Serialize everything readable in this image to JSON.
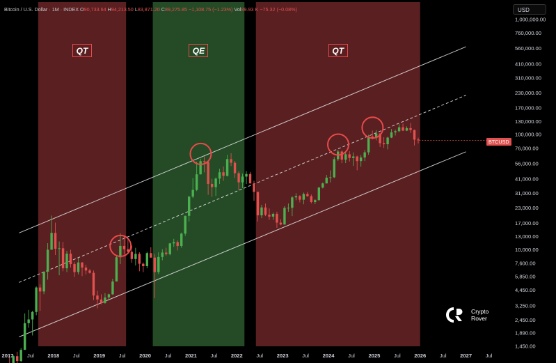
{
  "header": {
    "symbol": "Bitcoin / U.S. Dollar · 1M · INDEX",
    "o_key": "O",
    "o_val": "90,733.64",
    "h_key": "H",
    "h_val": "94,213.50",
    "l_key": "L",
    "l_val": "83,871.20",
    "c_key": "C",
    "c_val": "89,275.85",
    "change": "−1,108.75 (−1.23%)",
    "vol_key": "Vol",
    "vol_val": "89.93 K",
    "vol_change": "−75.32 (−0.08%)"
  },
  "currency_button": "USD",
  "last_price_tag": "BTCUSD",
  "logo": {
    "line1": "Crypto",
    "line2": "Rover"
  },
  "colors": {
    "up": "#4caf50",
    "down": "#e0514f",
    "qt_zone": "#5a1f21",
    "qe_zone": "#244b26",
    "circle": "#e84a4a",
    "channel": "#e6e6e6"
  },
  "chart_data": {
    "type": "candlestick",
    "y_scale": "log",
    "ylim": [
      1450,
      1000000
    ],
    "y_ticks": [
      1000000,
      760000,
      560000,
      410000,
      310000,
      230000,
      170000,
      130000,
      100000,
      76000,
      56000,
      41000,
      31000,
      23000,
      17000,
      13000,
      10000,
      7600,
      5850,
      4450,
      3250,
      2450,
      1890,
      1450
    ],
    "y_tick_labels": [
      "1,000,000.00",
      "760,000.00",
      "560,000.00",
      "410,000.00",
      "310,000.00",
      "230,000.00",
      "170,000.00",
      "130,000.00",
      "100,000.00",
      "76,000.00",
      "56,000.00",
      "41,000.00",
      "31,000.00",
      "23,000.00",
      "17,000.00",
      "13,000.00",
      "10,000.00",
      "7,600.00",
      "5,850.00",
      "4,450.00",
      "3,250.00",
      "2,450.00",
      "1,890.00",
      "1,450.00"
    ],
    "x_range": [
      "2016-11",
      "2027-12"
    ],
    "x_ticks": [
      {
        "date": "2017-01",
        "label": "2017"
      },
      {
        "date": "2017-07",
        "label": "Jul"
      },
      {
        "date": "2018-01",
        "label": "2018"
      },
      {
        "date": "2018-07",
        "label": "Jul"
      },
      {
        "date": "2019-01",
        "label": "2019"
      },
      {
        "date": "2019-07",
        "label": "Jul"
      },
      {
        "date": "2020-01",
        "label": "2020"
      },
      {
        "date": "2020-07",
        "label": "Jul"
      },
      {
        "date": "2021-01",
        "label": "2021"
      },
      {
        "date": "2021-07",
        "label": "Jul"
      },
      {
        "date": "2022-01",
        "label": "2022"
      },
      {
        "date": "2022-07",
        "label": "Jul"
      },
      {
        "date": "2023-01",
        "label": "2023"
      },
      {
        "date": "2023-07",
        "label": "Jul"
      },
      {
        "date": "2024-01",
        "label": "2024"
      },
      {
        "date": "2024-07",
        "label": "Jul"
      },
      {
        "date": "2025-01",
        "label": "2025"
      },
      {
        "date": "2025-07",
        "label": "Jul"
      },
      {
        "date": "2026-01",
        "label": "2026"
      },
      {
        "date": "2026-07",
        "label": "Jul"
      },
      {
        "date": "2027-01",
        "label": "2027"
      },
      {
        "date": "2027-07",
        "label": "Jul"
      }
    ],
    "zones": [
      {
        "label": "QT",
        "start": "2017-09",
        "end": "2019-08"
      },
      {
        "label": "QE",
        "start": "2020-03",
        "end": "2022-03"
      },
      {
        "label": "QT",
        "start": "2022-06",
        "end": "2026-01"
      }
    ],
    "channel": {
      "upper": [
        [
          "2017-04",
          14000
        ],
        [
          "2027-01",
          580000
        ]
      ],
      "middle": [
        [
          "2017-04",
          5200
        ],
        [
          "2027-01",
          220000
        ]
      ],
      "lower": [
        [
          "2017-04",
          1750
        ],
        [
          "2027-01",
          71000
        ]
      ]
    },
    "circles": [
      {
        "date": "2019-06",
        "price": 10800
      },
      {
        "date": "2021-03",
        "price": 68000
      },
      {
        "date": "2024-03",
        "price": 82000
      },
      {
        "date": "2024-12",
        "price": 115000
      }
    ],
    "last_price": 89275.85,
    "ohlc": [
      [
        "2017-01",
        970,
        1190,
        750,
        960
      ],
      [
        "2017-02",
        960,
        1210,
        920,
        1190
      ],
      [
        "2017-03",
        1190,
        1300,
        890,
        1080
      ],
      [
        "2017-04",
        1080,
        1400,
        1060,
        1350
      ],
      [
        "2017-05",
        1350,
        2800,
        1350,
        2300
      ],
      [
        "2017-06",
        2300,
        3000,
        2100,
        2480
      ],
      [
        "2017-07",
        2480,
        2950,
        1800,
        2880
      ],
      [
        "2017-08",
        2880,
        4800,
        2700,
        4700
      ],
      [
        "2017-09",
        4700,
        5000,
        2950,
        4340
      ],
      [
        "2017-10",
        4340,
        6500,
        4110,
        6450
      ],
      [
        "2017-11",
        6450,
        11400,
        5500,
        10000
      ],
      [
        "2017-12",
        10000,
        19800,
        10000,
        14000
      ],
      [
        "2018-01",
        14000,
        17200,
        9000,
        10200
      ],
      [
        "2018-02",
        10200,
        11800,
        6000,
        10300
      ],
      [
        "2018-03",
        10300,
        11700,
        6500,
        6900
      ],
      [
        "2018-04",
        6900,
        9800,
        6400,
        9250
      ],
      [
        "2018-05",
        9250,
        10000,
        7000,
        7500
      ],
      [
        "2018-06",
        7500,
        7800,
        5800,
        6400
      ],
      [
        "2018-07",
        6400,
        8500,
        6100,
        7750
      ],
      [
        "2018-08",
        7750,
        7800,
        5900,
        7000
      ],
      [
        "2018-09",
        7000,
        7400,
        6100,
        6600
      ],
      [
        "2018-10",
        6600,
        6800,
        6200,
        6300
      ],
      [
        "2018-11",
        6300,
        6600,
        3650,
        4000
      ],
      [
        "2018-12",
        4000,
        4400,
        3100,
        3700
      ],
      [
        "2019-01",
        3700,
        4100,
        3350,
        3450
      ],
      [
        "2019-02",
        3450,
        4200,
        3400,
        3850
      ],
      [
        "2019-03",
        3850,
        4150,
        3700,
        4100
      ],
      [
        "2019-04",
        4100,
        5600,
        4050,
        5300
      ],
      [
        "2019-05",
        5300,
        9000,
        5300,
        8600
      ],
      [
        "2019-06",
        8600,
        13900,
        7500,
        10800
      ],
      [
        "2019-07",
        10800,
        13200,
        9100,
        10100
      ],
      [
        "2019-08",
        10100,
        12300,
        9400,
        9600
      ],
      [
        "2019-09",
        9600,
        10900,
        7700,
        8300
      ],
      [
        "2019-10",
        8300,
        10400,
        7300,
        9200
      ],
      [
        "2019-11",
        9200,
        9500,
        6500,
        7550
      ],
      [
        "2019-12",
        7550,
        7750,
        6400,
        7200
      ],
      [
        "2020-01",
        7200,
        9600,
        6900,
        9350
      ],
      [
        "2020-02",
        9350,
        10500,
        8500,
        8550
      ],
      [
        "2020-03",
        8550,
        9200,
        3800,
        6400
      ],
      [
        "2020-04",
        6400,
        9500,
        6150,
        8650
      ],
      [
        "2020-05",
        8650,
        10100,
        8100,
        9450
      ],
      [
        "2020-06",
        9450,
        10400,
        8900,
        9150
      ],
      [
        "2020-07",
        9150,
        11450,
        8950,
        11350
      ],
      [
        "2020-08",
        11350,
        12450,
        10600,
        11650
      ],
      [
        "2020-09",
        11650,
        12050,
        9850,
        10780
      ],
      [
        "2020-10",
        10780,
        14100,
        10400,
        13800
      ],
      [
        "2020-11",
        13800,
        19800,
        13200,
        19700
      ],
      [
        "2020-12",
        19700,
        29300,
        17600,
        28950
      ],
      [
        "2021-01",
        28950,
        41900,
        28100,
        33100
      ],
      [
        "2021-02",
        33100,
        58300,
        32300,
        45200
      ],
      [
        "2021-03",
        45200,
        61800,
        45000,
        58800
      ],
      [
        "2021-04",
        58800,
        64800,
        47000,
        57700
      ],
      [
        "2021-05",
        57700,
        59500,
        30000,
        37300
      ],
      [
        "2021-06",
        37300,
        41300,
        28800,
        35000
      ],
      [
        "2021-07",
        35000,
        42400,
        29300,
        41500
      ],
      [
        "2021-08",
        41500,
        50500,
        37300,
        47100
      ],
      [
        "2021-09",
        47100,
        52900,
        39600,
        43800
      ],
      [
        "2021-10",
        43800,
        66900,
        43300,
        61300
      ],
      [
        "2021-11",
        61300,
        69000,
        53300,
        57000
      ],
      [
        "2021-12",
        57000,
        59100,
        42000,
        46200
      ],
      [
        "2022-01",
        46200,
        47900,
        32900,
        38500
      ],
      [
        "2022-02",
        38500,
        45800,
        34300,
        43200
      ],
      [
        "2022-03",
        43200,
        48200,
        37200,
        45500
      ],
      [
        "2022-04",
        45500,
        47400,
        37600,
        37700
      ],
      [
        "2022-05",
        37700,
        39800,
        26600,
        31800
      ],
      [
        "2022-06",
        31800,
        31900,
        17600,
        19900
      ],
      [
        "2022-07",
        19900,
        24600,
        18800,
        23300
      ],
      [
        "2022-08",
        23300,
        25200,
        19600,
        20100
      ],
      [
        "2022-09",
        20100,
        22800,
        18200,
        19400
      ],
      [
        "2022-10",
        19400,
        21000,
        18200,
        20500
      ],
      [
        "2022-11",
        20500,
        21400,
        15500,
        17200
      ],
      [
        "2022-12",
        17200,
        18400,
        16300,
        16550
      ],
      [
        "2023-01",
        16550,
        23900,
        16500,
        23100
      ],
      [
        "2023-02",
        23100,
        25250,
        21400,
        23150
      ],
      [
        "2023-03",
        23150,
        29200,
        19600,
        28500
      ],
      [
        "2023-04",
        28500,
        31000,
        26900,
        29250
      ],
      [
        "2023-05",
        29250,
        29800,
        25800,
        27200
      ],
      [
        "2023-06",
        27200,
        31400,
        24800,
        30500
      ],
      [
        "2023-07",
        30500,
        31800,
        28900,
        29200
      ],
      [
        "2023-08",
        29200,
        30200,
        25300,
        25950
      ],
      [
        "2023-09",
        25950,
        27500,
        24900,
        27000
      ],
      [
        "2023-10",
        27000,
        35200,
        26600,
        34650
      ],
      [
        "2023-11",
        34650,
        38400,
        34100,
        37700
      ],
      [
        "2023-12",
        37700,
        44700,
        37600,
        42300
      ],
      [
        "2024-01",
        42300,
        48900,
        38500,
        42600
      ],
      [
        "2024-02",
        42600,
        64000,
        41900,
        61200
      ],
      [
        "2024-03",
        61200,
        73800,
        59000,
        71300
      ],
      [
        "2024-04",
        71300,
        72800,
        56500,
        60600
      ],
      [
        "2024-05",
        60600,
        71900,
        56600,
        67500
      ],
      [
        "2024-06",
        67500,
        72000,
        58400,
        62700
      ],
      [
        "2024-07",
        62700,
        70000,
        53500,
        64600
      ],
      [
        "2024-08",
        64600,
        65600,
        49000,
        58900
      ],
      [
        "2024-09",
        58900,
        66500,
        52600,
        63300
      ],
      [
        "2024-10",
        63300,
        73600,
        58900,
        70200
      ],
      [
        "2024-11",
        70200,
        99600,
        66800,
        96400
      ],
      [
        "2024-12",
        96400,
        108300,
        90700,
        93400
      ],
      [
        "2025-01",
        93400,
        109300,
        89200,
        102400
      ],
      [
        "2025-02",
        102400,
        102500,
        78200,
        84300
      ],
      [
        "2025-03",
        84300,
        95000,
        76600,
        82500
      ],
      [
        "2025-04",
        82500,
        95800,
        74400,
        94200
      ],
      [
        "2025-05",
        94200,
        111900,
        93400,
        104600
      ],
      [
        "2025-06",
        104600,
        110500,
        98200,
        107100
      ],
      [
        "2025-07",
        107100,
        123200,
        105300,
        115800
      ],
      [
        "2025-08",
        115800,
        124500,
        107300,
        108300
      ],
      [
        "2025-09",
        108300,
        117900,
        107300,
        114000
      ],
      [
        "2025-10",
        114000,
        126200,
        103500,
        109600
      ],
      [
        "2025-11",
        109600,
        110600,
        80500,
        90384.6
      ],
      [
        "2025-12",
        90733.64,
        94213.5,
        83871.2,
        89275.85
      ]
    ]
  }
}
